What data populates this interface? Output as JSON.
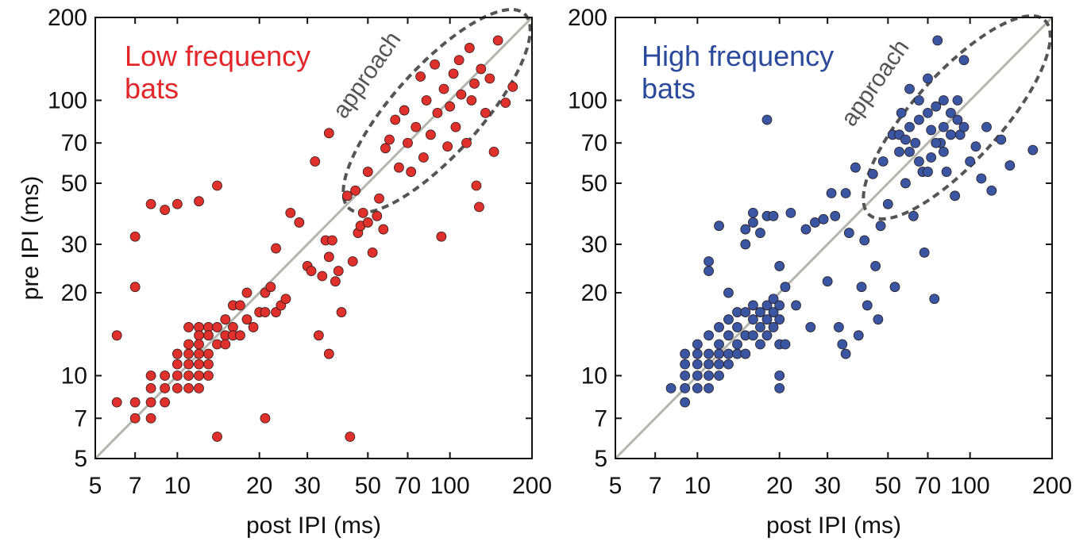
{
  "chart_data": [
    {
      "type": "scatter",
      "title": "Low frequency bats",
      "xlabel": "post IPI (ms)",
      "ylabel": "pre IPI (ms)",
      "annotation": "approach",
      "log_scale": true,
      "color": "#e0302c",
      "title_color": "#e3262a",
      "xlim": [
        5,
        200
      ],
      "ylim": [
        5,
        200
      ],
      "xticks": [
        5,
        7,
        10,
        20,
        30,
        50,
        70,
        100,
        200
      ],
      "yticks": [
        5,
        7,
        10,
        20,
        30,
        50,
        70,
        100,
        200
      ],
      "x": [
        6,
        6,
        7,
        7,
        7,
        7,
        8,
        8,
        8,
        8,
        8,
        9,
        9,
        9,
        9,
        10,
        10,
        10,
        10,
        10,
        11,
        11,
        11,
        11,
        11,
        11,
        12,
        12,
        12,
        12,
        12,
        12,
        12,
        12,
        13,
        13,
        13,
        13,
        13,
        14,
        14,
        14,
        14,
        15,
        15,
        15,
        16,
        16,
        16,
        17,
        17,
        18,
        18,
        19,
        20,
        21,
        21,
        21,
        22,
        23,
        23,
        24,
        25,
        26,
        28,
        30,
        31,
        32,
        33,
        34,
        35,
        36,
        36,
        36,
        37,
        38,
        39,
        40,
        42,
        43,
        44,
        45,
        46,
        47,
        48,
        50,
        50,
        52,
        54,
        55,
        57,
        58,
        60,
        63,
        65,
        68,
        70,
        72,
        75,
        78,
        80,
        82,
        85,
        88,
        90,
        93,
        95,
        98,
        100,
        103,
        105,
        108,
        110,
        115,
        118,
        120,
        123,
        125,
        128,
        130,
        135,
        140,
        145,
        150,
        160,
        170
      ],
      "values": [
        14,
        8,
        32,
        21,
        8,
        7,
        42,
        10,
        9,
        8,
        7,
        40,
        10,
        9,
        8,
        42,
        12,
        11,
        10,
        9,
        15,
        13,
        12,
        11,
        10,
        9,
        43,
        15,
        14,
        13,
        12,
        11,
        10,
        9,
        15,
        14,
        12,
        11,
        10,
        49,
        15,
        13,
        6,
        16,
        14,
        13,
        18,
        15,
        14,
        18,
        14,
        20,
        16,
        15,
        17,
        20,
        17,
        7,
        21,
        29,
        17,
        18,
        19,
        39,
        36,
        25,
        24,
        60,
        14,
        23,
        31,
        76,
        27,
        12,
        31,
        22,
        24,
        17,
        45,
        6,
        26,
        47,
        33,
        35,
        39,
        55,
        36,
        28,
        38,
        44,
        34,
        67,
        72,
        85,
        57,
        92,
        70,
        55,
        80,
        122,
        62,
        100,
        75,
        135,
        90,
        32,
        110,
        68,
        95,
        125,
        80,
        140,
        105,
        70,
        155,
        100,
        115,
        49,
        41,
        130,
        90,
        120,
        65,
        165,
        98,
        112
      ]
    },
    {
      "type": "scatter",
      "title": "High frequency bats",
      "xlabel": "post IPI (ms)",
      "annotation": "approach",
      "log_scale": true,
      "color": "#3a56a3",
      "title_color": "#2b4a9c",
      "xlim": [
        5,
        200
      ],
      "ylim": [
        5,
        200
      ],
      "xticks": [
        5,
        7,
        10,
        20,
        30,
        50,
        70,
        100,
        200
      ],
      "yticks": [
        5,
        7,
        10,
        20,
        30,
        50,
        70,
        100,
        200
      ],
      "x": [
        8,
        9,
        9,
        9,
        9,
        9,
        10,
        10,
        10,
        10,
        10,
        11,
        11,
        11,
        11,
        11,
        11,
        11,
        12,
        12,
        12,
        12,
        12,
        12,
        13,
        13,
        13,
        13,
        13,
        14,
        14,
        14,
        14,
        15,
        15,
        15,
        15,
        15,
        16,
        16,
        16,
        16,
        16,
        17,
        17,
        17,
        17,
        18,
        18,
        18,
        18,
        18,
        19,
        19,
        19,
        19,
        20,
        20,
        20,
        20,
        20,
        20,
        21,
        21,
        22,
        23,
        25,
        26,
        27,
        29,
        30,
        31,
        32,
        33,
        34,
        35,
        35,
        36,
        38,
        39,
        40,
        41,
        42,
        44,
        45,
        46,
        47,
        48,
        50,
        52,
        53,
        55,
        56,
        58,
        60,
        62,
        63,
        65,
        67,
        68,
        70,
        72,
        74,
        75,
        76,
        78,
        80,
        82,
        85,
        88,
        90,
        92,
        95,
        100,
        105,
        110,
        115,
        120,
        130,
        140,
        170,
        55,
        60,
        65,
        70,
        75,
        80,
        85,
        90,
        65,
        70,
        60,
        80,
        95,
        58,
        72
      ],
      "values": [
        9,
        12,
        11,
        10,
        9,
        8,
        13,
        12,
        11,
        10,
        9,
        26,
        24,
        14,
        12,
        11,
        10,
        9,
        35,
        15,
        13,
        12,
        11,
        10,
        20,
        16,
        14,
        12,
        11,
        17,
        15,
        13,
        12,
        34,
        30,
        17,
        14,
        12,
        39,
        36,
        18,
        16,
        14,
        33,
        17,
        15,
        13,
        85,
        38,
        18,
        16,
        14,
        38,
        19,
        17,
        15,
        25,
        18,
        16,
        13,
        10,
        9,
        21,
        13,
        39,
        18,
        34,
        15,
        36,
        37,
        22,
        46,
        38,
        15,
        13,
        46,
        12,
        33,
        57,
        14,
        21,
        31,
        18,
        54,
        25,
        16,
        35,
        60,
        42,
        75,
        21,
        65,
        90,
        50,
        110,
        38,
        70,
        85,
        55,
        28,
        120,
        62,
        19,
        95,
        165,
        70,
        80,
        55,
        90,
        45,
        100,
        75,
        140,
        60,
        68,
        52,
        80,
        47,
        72,
        58,
        66,
        75,
        80,
        60,
        90,
        70,
        65,
        75,
        85,
        100,
        55,
        65,
        100,
        80,
        72,
        78
      ]
    }
  ]
}
